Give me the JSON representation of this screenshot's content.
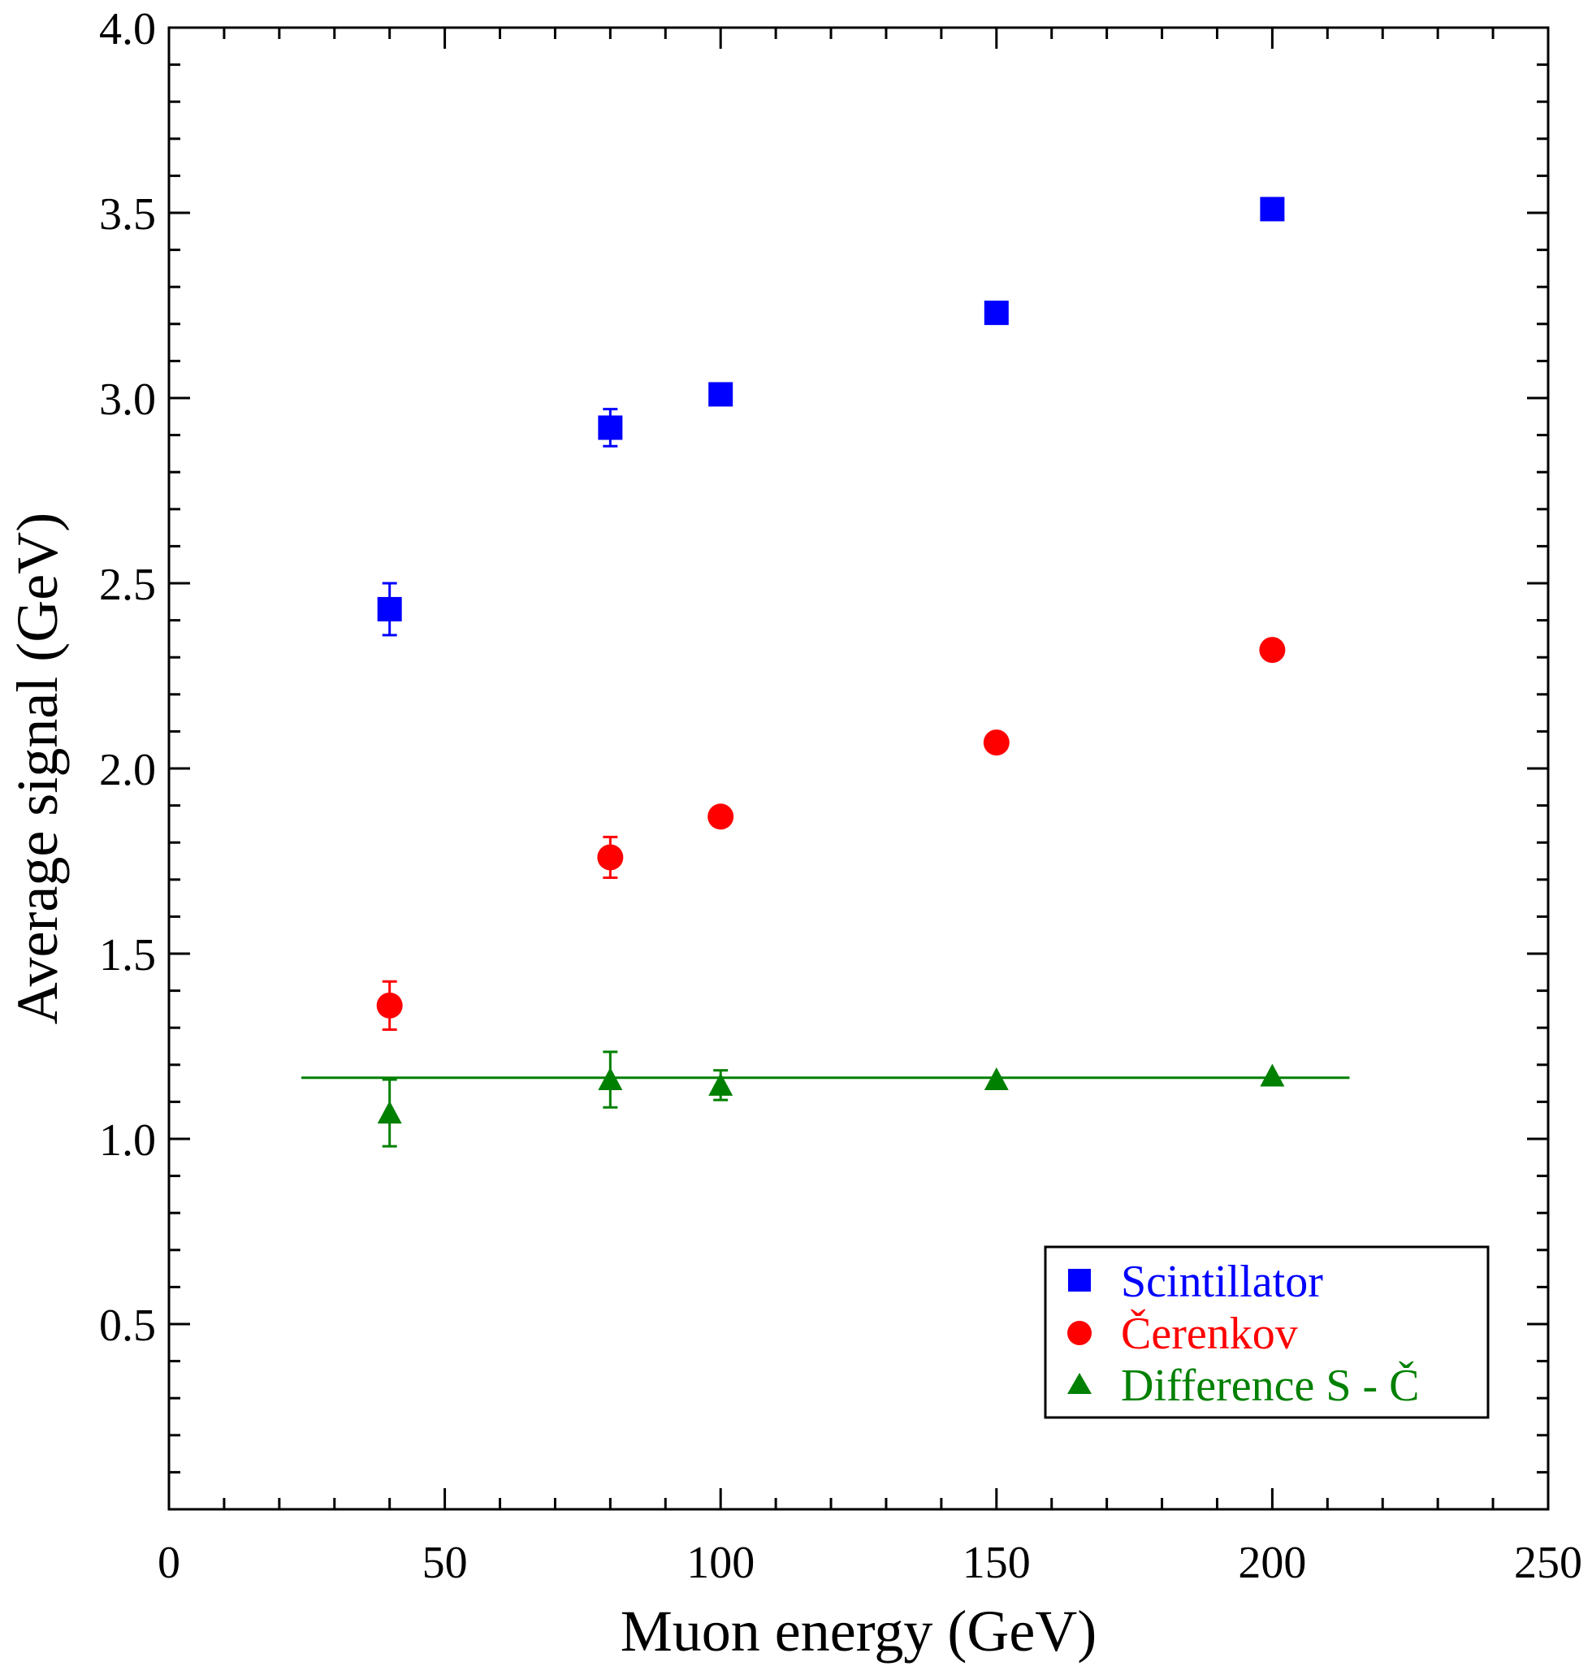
{
  "chart_data": {
    "type": "scatter",
    "title": "",
    "xlabel": "Muon energy (GeV)",
    "ylabel": "Average signal (GeV)",
    "xlim": [
      0,
      250
    ],
    "ylim": [
      0,
      4.0
    ],
    "x_ticks": [
      "0",
      "50",
      "100",
      "150",
      "200",
      "250"
    ],
    "y_ticks": [
      "0.5",
      "1.0",
      "1.5",
      "2.0",
      "2.5",
      "3.0",
      "3.5",
      "4.0"
    ],
    "grid": false,
    "legend_position": "bottom-right",
    "series": [
      {
        "name": "Scintillator",
        "marker": "square",
        "color": "#0000ff",
        "points": [
          {
            "x": 40,
            "y": 2.43,
            "err": 0.07
          },
          {
            "x": 80,
            "y": 2.92,
            "err": 0.05
          },
          {
            "x": 100,
            "y": 3.01,
            "err": 0.0
          },
          {
            "x": 150,
            "y": 3.23,
            "err": 0.0
          },
          {
            "x": 200,
            "y": 3.51,
            "err": 0.0
          }
        ]
      },
      {
        "name": "Čerenkov",
        "marker": "circle",
        "color": "#ff0000",
        "points": [
          {
            "x": 40,
            "y": 1.36,
            "err": 0.065
          },
          {
            "x": 80,
            "y": 1.76,
            "err": 0.055
          },
          {
            "x": 100,
            "y": 1.87,
            "err": 0.0
          },
          {
            "x": 150,
            "y": 2.07,
            "err": 0.0
          },
          {
            "x": 200,
            "y": 2.32,
            "err": 0.0
          }
        ]
      },
      {
        "name": "Difference S - Č",
        "marker": "triangle",
        "color": "#008000",
        "points": [
          {
            "x": 40,
            "y": 1.07,
            "err": 0.09
          },
          {
            "x": 80,
            "y": 1.16,
            "err": 0.075
          },
          {
            "x": 100,
            "y": 1.145,
            "err": 0.04
          },
          {
            "x": 150,
            "y": 1.16,
            "err": 0.0
          },
          {
            "x": 200,
            "y": 1.17,
            "err": 0.0
          }
        ]
      }
    ],
    "fit_line": {
      "series": "Difference S - Č",
      "color": "#008000",
      "x": [
        24,
        214
      ],
      "y": [
        1.165,
        1.165
      ]
    }
  }
}
